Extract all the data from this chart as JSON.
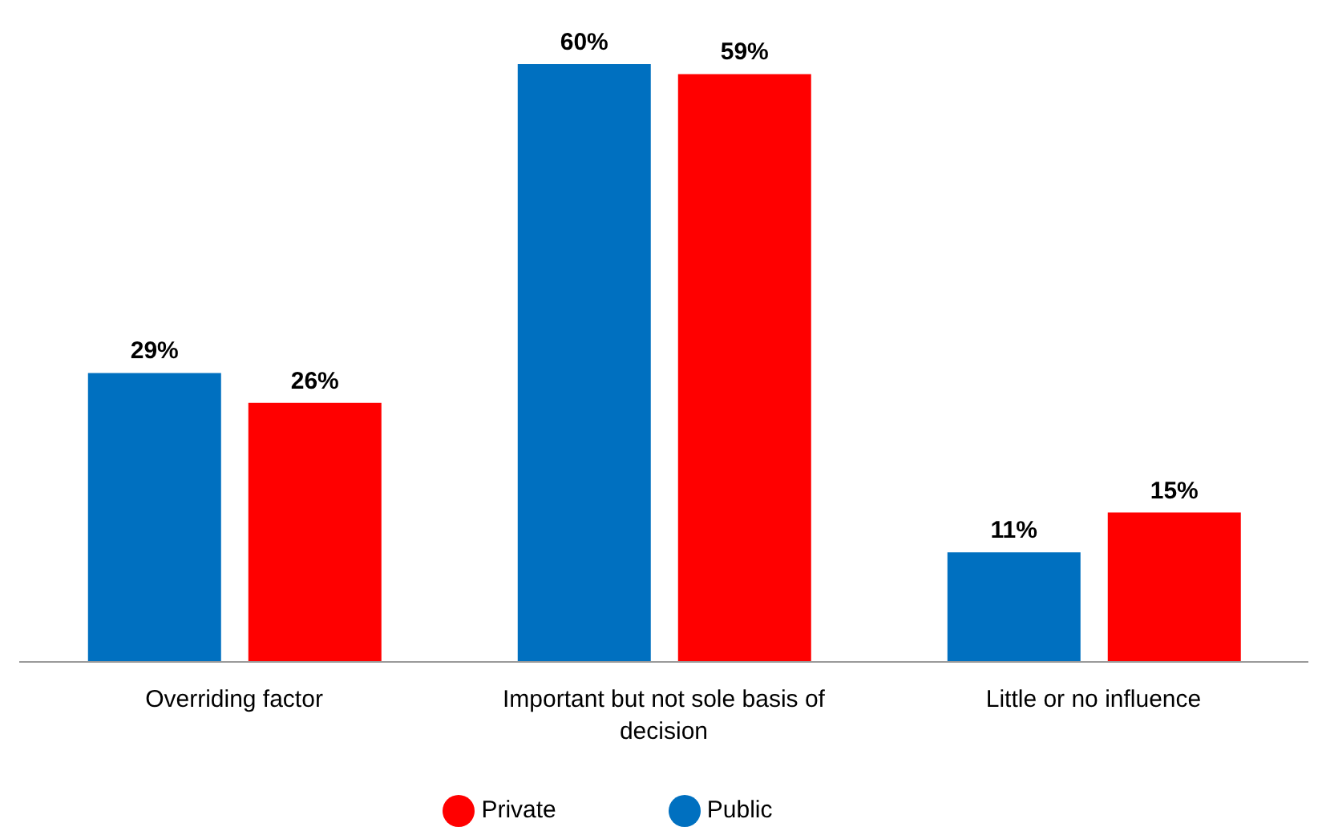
{
  "chart_data": {
    "type": "bar",
    "categories": [
      "Overriding factor",
      "Important but not sole basis of decision",
      "Little or no influence"
    ],
    "series": [
      {
        "name": "Public",
        "color": "#0070c0",
        "values": [
          29,
          60,
          11
        ],
        "value_labels": [
          "29%",
          "60%",
          "11%"
        ]
      },
      {
        "name": "Private",
        "color": "#ff0000",
        "values": [
          26,
          59,
          15
        ],
        "value_labels": [
          "26%",
          "59%",
          "15%"
        ]
      }
    ],
    "legend": "bottom",
    "grid": false
  }
}
